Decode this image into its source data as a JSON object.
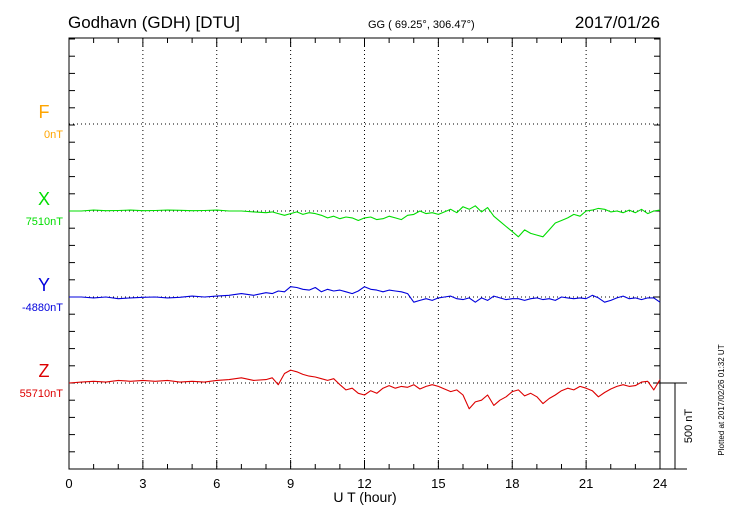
{
  "header": {
    "station": "Godhavn (GDH)  [DTU]",
    "coords": "GG ( 69.25°, 306.47°)",
    "date": "2017/01/26"
  },
  "side_note": "Plotted at 2017/02/26 01:32 UT",
  "scale_label": "500 nT",
  "chart_data": {
    "type": "line",
    "xlabel": "U T (hour)",
    "xlim": [
      0,
      24
    ],
    "x_ticks": [
      "0",
      "3",
      "6",
      "9",
      "12",
      "15",
      "18",
      "21",
      "24"
    ],
    "scale_bar_nT": 500,
    "grid": true,
    "series": [
      {
        "name": "F",
        "baseline_label": "0nT",
        "color": "#ffa500",
        "x": [],
        "values": []
      },
      {
        "name": "X",
        "baseline_label": "7510nT",
        "color": "#00dd00",
        "x": [
          0,
          0.5,
          1,
          1.5,
          2,
          2.5,
          3,
          3.5,
          4,
          4.5,
          5,
          5.5,
          6,
          6.5,
          7,
          7.5,
          8,
          8.25,
          8.5,
          8.75,
          9,
          9.25,
          9.5,
          9.75,
          10,
          10.25,
          10.5,
          10.75,
          11,
          11.25,
          11.5,
          11.75,
          12,
          12.25,
          12.5,
          12.75,
          13,
          13.25,
          13.5,
          13.75,
          14,
          14.25,
          14.5,
          14.75,
          15,
          15.25,
          15.5,
          15.75,
          16,
          16.25,
          16.5,
          16.75,
          17,
          17.25,
          17.5,
          17.75,
          18,
          18.25,
          18.5,
          18.75,
          19,
          19.25,
          19.5,
          19.75,
          20,
          20.25,
          20.5,
          20.75,
          21,
          21.25,
          21.5,
          21.75,
          22,
          22.25,
          22.5,
          22.75,
          23,
          23.25,
          23.5,
          23.75,
          24
        ],
        "values": [
          0,
          0,
          5,
          2,
          3,
          5,
          2,
          3,
          5,
          4,
          2,
          3,
          5,
          0,
          0,
          -5,
          -10,
          -5,
          -15,
          -25,
          -15,
          -5,
          -20,
          -10,
          -15,
          -25,
          -40,
          -30,
          -45,
          -35,
          -40,
          -55,
          -40,
          -35,
          -50,
          -45,
          -30,
          -40,
          -50,
          -25,
          -20,
          0,
          -15,
          -10,
          -20,
          -5,
          10,
          -10,
          25,
          10,
          30,
          -5,
          20,
          -30,
          -60,
          -90,
          -120,
          -150,
          -110,
          -130,
          -140,
          -150,
          -110,
          -70,
          -55,
          -40,
          -20,
          -30,
          0,
          5,
          15,
          10,
          -5,
          0,
          -10,
          5,
          -10,
          10,
          -15,
          0,
          5
        ]
      },
      {
        "name": "Y",
        "baseline_label": "-4880nT",
        "color": "#0000dd",
        "x": [
          0,
          0.5,
          1,
          1.5,
          2,
          2.5,
          3,
          3.5,
          4,
          4.5,
          5,
          5.5,
          6,
          6.5,
          7,
          7.5,
          8,
          8.25,
          8.5,
          8.75,
          9,
          9.25,
          9.5,
          9.75,
          10,
          10.25,
          10.5,
          10.75,
          11,
          11.25,
          11.5,
          11.75,
          12,
          12.25,
          12.5,
          12.75,
          13,
          13.25,
          13.5,
          13.75,
          14,
          14.25,
          14.5,
          14.75,
          15,
          15.25,
          15.5,
          15.75,
          16,
          16.25,
          16.5,
          16.75,
          17,
          17.25,
          17.5,
          17.75,
          18,
          18.25,
          18.5,
          18.75,
          19,
          19.25,
          19.5,
          19.75,
          20,
          20.25,
          20.5,
          20.75,
          21,
          21.25,
          21.5,
          21.75,
          22,
          22.25,
          22.5,
          22.75,
          23,
          23.25,
          23.5,
          23.75,
          24
        ],
        "values": [
          0,
          0,
          -5,
          0,
          -10,
          -5,
          -2,
          0,
          -5,
          -2,
          5,
          0,
          5,
          10,
          20,
          10,
          25,
          20,
          35,
          30,
          60,
          55,
          45,
          40,
          55,
          30,
          45,
          35,
          40,
          30,
          20,
          35,
          60,
          45,
          40,
          30,
          40,
          35,
          30,
          20,
          -30,
          -20,
          -10,
          -20,
          -5,
          0,
          5,
          -10,
          -15,
          -5,
          -30,
          -5,
          -20,
          5,
          -5,
          -15,
          -10,
          -10,
          -20,
          -10,
          -5,
          -15,
          -10,
          -20,
          0,
          -5,
          -10,
          -5,
          -10,
          10,
          -5,
          -30,
          -20,
          -5,
          5,
          -10,
          -5,
          -15,
          -5,
          -5,
          -30
        ]
      },
      {
        "name": "Z",
        "baseline_label": "55710nT",
        "color": "#dd0000",
        "x": [
          0,
          0.5,
          1,
          1.5,
          2,
          2.5,
          3,
          3.5,
          4,
          4.5,
          5,
          5.5,
          6,
          6.5,
          7,
          7.5,
          8,
          8.25,
          8.5,
          8.75,
          9,
          9.25,
          9.5,
          9.75,
          10,
          10.25,
          10.5,
          10.75,
          11,
          11.25,
          11.5,
          11.75,
          12,
          12.25,
          12.5,
          12.75,
          13,
          13.25,
          13.5,
          13.75,
          14,
          14.25,
          14.5,
          14.75,
          15,
          15.25,
          15.5,
          15.75,
          16,
          16.25,
          16.5,
          16.75,
          17,
          17.25,
          17.5,
          17.75,
          18,
          18.25,
          18.5,
          18.75,
          19,
          19.25,
          19.5,
          19.75,
          20,
          20.25,
          20.5,
          20.75,
          21,
          21.25,
          21.5,
          21.75,
          22,
          22.25,
          22.5,
          22.75,
          23,
          23.25,
          23.5,
          23.75,
          24
        ],
        "values": [
          0,
          5,
          10,
          5,
          15,
          10,
          15,
          10,
          15,
          5,
          10,
          5,
          15,
          20,
          30,
          15,
          20,
          30,
          -10,
          55,
          75,
          65,
          50,
          40,
          35,
          25,
          15,
          25,
          -10,
          -40,
          -30,
          -60,
          -70,
          -45,
          -60,
          -30,
          -15,
          -30,
          -20,
          -25,
          -10,
          -35,
          -20,
          -10,
          -20,
          -35,
          -50,
          -40,
          -70,
          -150,
          -110,
          -100,
          -70,
          -130,
          -100,
          -80,
          -50,
          -40,
          -75,
          -60,
          -80,
          -120,
          -90,
          -70,
          -45,
          -30,
          -40,
          -20,
          -30,
          -45,
          -80,
          -55,
          -35,
          -20,
          -10,
          -20,
          -15,
          5,
          10,
          -40,
          20
        ]
      }
    ]
  }
}
